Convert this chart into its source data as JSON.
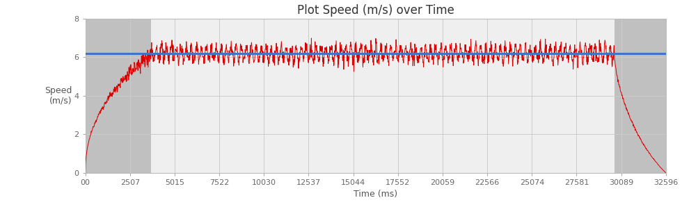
{
  "title": "Plot Speed (m/s) over Time",
  "xlabel": "Time (ms)",
  "ylabel": "Speed\n(m/s)",
  "xlim": [
    0,
    32596
  ],
  "ylim": [
    0,
    8
  ],
  "yticks": [
    0,
    2,
    4,
    6,
    8
  ],
  "xtick_labels": [
    "00",
    "2507",
    "5015",
    "7522",
    "10030",
    "12537",
    "15044",
    "17552",
    "20059",
    "22566",
    "25074",
    "27581",
    "30089",
    "32596"
  ],
  "xtick_values": [
    0,
    2507,
    5015,
    7522,
    10030,
    12537,
    15044,
    17552,
    20059,
    22566,
    25074,
    27581,
    30089,
    32596
  ],
  "avg_speed": 6.18,
  "avg_line_color": "#4472C4",
  "speed_line_color": "#DD0000",
  "gray_region_left_start": 0,
  "gray_region_left_end": 3700,
  "gray_region_right_start": 29700,
  "gray_region_right_end": 32596,
  "gray_color": "#C0C0C0",
  "plot_bg_color": "#EFEFEF",
  "background_color": "#FFFFFF",
  "ramp_up_end": 3700,
  "steady_end": 29700,
  "total_end": 32596,
  "title_fontsize": 12,
  "axis_label_fontsize": 9,
  "tick_fontsize": 8
}
